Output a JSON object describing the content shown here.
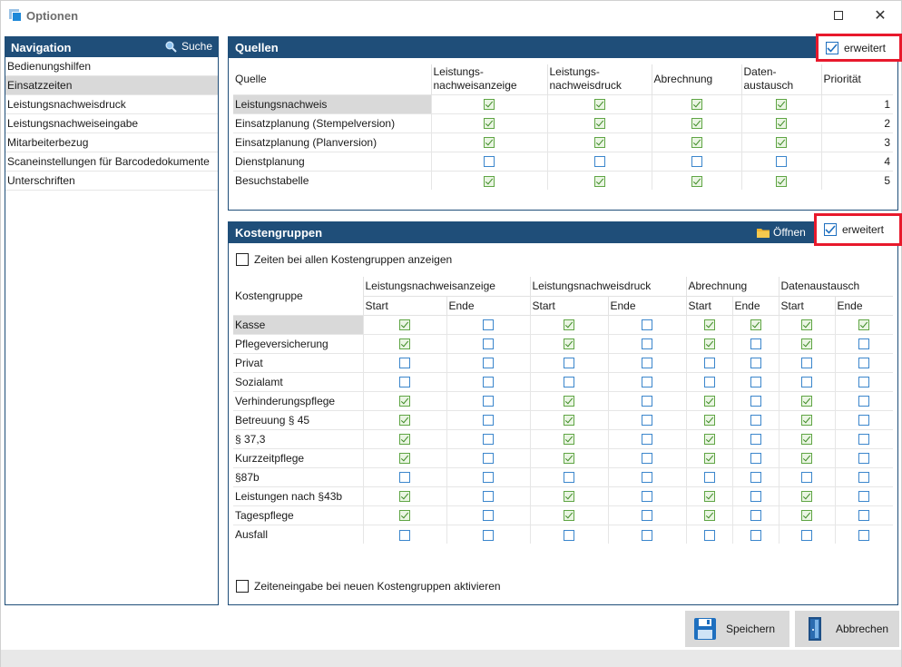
{
  "window": {
    "title": "Optionen"
  },
  "navigation": {
    "header": "Navigation",
    "search_label": "Suche",
    "items": [
      {
        "label": "Bedienungshilfen",
        "selected": false
      },
      {
        "label": "Einsatzzeiten",
        "selected": true
      },
      {
        "label": "Leistungsnachweisdruck",
        "selected": false
      },
      {
        "label": "Leistungsnachweiseingabe",
        "selected": false
      },
      {
        "label": "Mitarbeiterbezug",
        "selected": false
      },
      {
        "label": "Scaneinstellungen für Barcodedokumente",
        "selected": false
      },
      {
        "label": "Unterschriften",
        "selected": false
      }
    ]
  },
  "quellen": {
    "header": "Quellen",
    "extended_label": "erweitert",
    "extended_checked": true,
    "columns": {
      "quelle": "Quelle",
      "anzeige_1": "Leistungs-",
      "anzeige_2": "nachweisanzeige",
      "druck_1": "Leistungs-",
      "druck_2": "nachweisdruck",
      "abrechnung": "Abrechnung",
      "austausch_1": "Daten-",
      "austausch_2": "austausch",
      "prioritaet": "Priorität"
    },
    "rows": [
      {
        "name": "Leistungsnachweis",
        "checks": [
          true,
          true,
          true,
          true
        ],
        "priority": "1"
      },
      {
        "name": "Einsatzplanung (Stempelversion)",
        "checks": [
          true,
          true,
          true,
          true
        ],
        "priority": "2"
      },
      {
        "name": "Einsatzplanung (Planversion)",
        "checks": [
          true,
          true,
          true,
          true
        ],
        "priority": "3"
      },
      {
        "name": "Dienstplanung",
        "checks": [
          false,
          false,
          false,
          false
        ],
        "priority": "4"
      },
      {
        "name": "Besuchstabelle",
        "checks": [
          true,
          true,
          true,
          true
        ],
        "priority": "5"
      }
    ]
  },
  "kostengruppen": {
    "header": "Kostengruppen",
    "open_label": "Öffnen",
    "extended_label": "erweitert",
    "extended_checked": true,
    "show_all_label": "Zeiten bei allen Kostengruppen anzeigen",
    "new_groups_label": "Zeiteneingabe bei neuen Kostengruppen aktivieren",
    "columns": {
      "kostengruppe": "Kostengruppe",
      "groups": [
        "Leistungsnachweisanzeige",
        "Leistungsnachweisdruck",
        "Abrechnung",
        "Datenaustausch"
      ],
      "start": "Start",
      "ende": "Ende"
    },
    "rows": [
      {
        "name": "Kasse",
        "checks": [
          true,
          false,
          true,
          false,
          true,
          true,
          true,
          true
        ]
      },
      {
        "name": "Pflegeversicherung",
        "checks": [
          true,
          false,
          true,
          false,
          true,
          false,
          true,
          false
        ]
      },
      {
        "name": "Privat",
        "checks": [
          false,
          false,
          false,
          false,
          false,
          false,
          false,
          false
        ]
      },
      {
        "name": "Sozialamt",
        "checks": [
          false,
          false,
          false,
          false,
          false,
          false,
          false,
          false
        ]
      },
      {
        "name": "Verhinderungspflege",
        "checks": [
          true,
          false,
          true,
          false,
          true,
          false,
          true,
          false
        ]
      },
      {
        "name": "Betreuung § 45",
        "checks": [
          true,
          false,
          true,
          false,
          true,
          false,
          true,
          false
        ]
      },
      {
        "name": "§ 37,3",
        "checks": [
          true,
          false,
          true,
          false,
          true,
          false,
          true,
          false
        ]
      },
      {
        "name": "Kurzzeitpflege",
        "checks": [
          true,
          false,
          true,
          false,
          true,
          false,
          true,
          false
        ]
      },
      {
        "name": "§87b",
        "checks": [
          false,
          false,
          false,
          false,
          false,
          false,
          false,
          false
        ]
      },
      {
        "name": "Leistungen nach §43b",
        "checks": [
          true,
          false,
          true,
          false,
          true,
          false,
          true,
          false
        ]
      },
      {
        "name": "Tagespflege",
        "checks": [
          true,
          false,
          true,
          false,
          true,
          false,
          true,
          false
        ]
      },
      {
        "name": "Ausfall",
        "checks": [
          false,
          false,
          false,
          false,
          false,
          false,
          false,
          false
        ]
      }
    ]
  },
  "footer": {
    "save_label": "Speichern",
    "cancel_label": "Abbrechen"
  },
  "colors": {
    "header_blue": "#1f4e79",
    "highlight_red": "#e8192c",
    "checked_green": "#5fa544",
    "unchecked_blue": "#3b86cc"
  }
}
